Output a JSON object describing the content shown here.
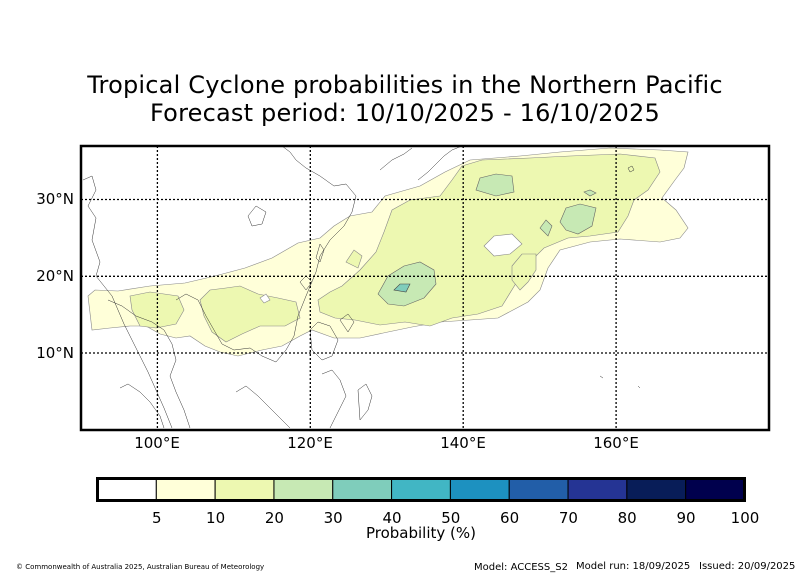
{
  "title_line1": "Tropical Cyclone probabilities in the Northern Pacific",
  "title_line2": "Forecast period: 10/10/2025 - 16/10/2025",
  "map": {
    "lon_range": [
      90,
      180
    ],
    "lat_range": [
      0,
      37
    ],
    "lat_ticks": [
      {
        "value": 30,
        "label": "30°N"
      },
      {
        "value": 20,
        "label": "20°N"
      },
      {
        "value": 10,
        "label": "10°N"
      }
    ],
    "lon_ticks": [
      {
        "value": 100,
        "label": "100°E"
      },
      {
        "value": 120,
        "label": "120°E"
      },
      {
        "value": 140,
        "label": "140°E"
      },
      {
        "value": 160,
        "label": "160°E"
      }
    ]
  },
  "colorbar": {
    "label": "Probability (%)",
    "ticks": [
      "5",
      "10",
      "20",
      "30",
      "40",
      "50",
      "60",
      "70",
      "80",
      "90",
      "100"
    ],
    "colors": [
      "#ffffff",
      "#ffffd9",
      "#edf8b1",
      "#c7e9b4",
      "#7fcdbb",
      "#41b6c4",
      "#1d91c0",
      "#225ea8",
      "#253494",
      "#081d58",
      "#00004d"
    ]
  },
  "footer": {
    "copyright": "© Commonwealth of Australia 2025, Australian Bureau of Meteorology",
    "model": "Model: ACCESS_S2",
    "model_run": "Model run: 18/09/2025",
    "issued": "Issued: 20/09/2025"
  }
}
